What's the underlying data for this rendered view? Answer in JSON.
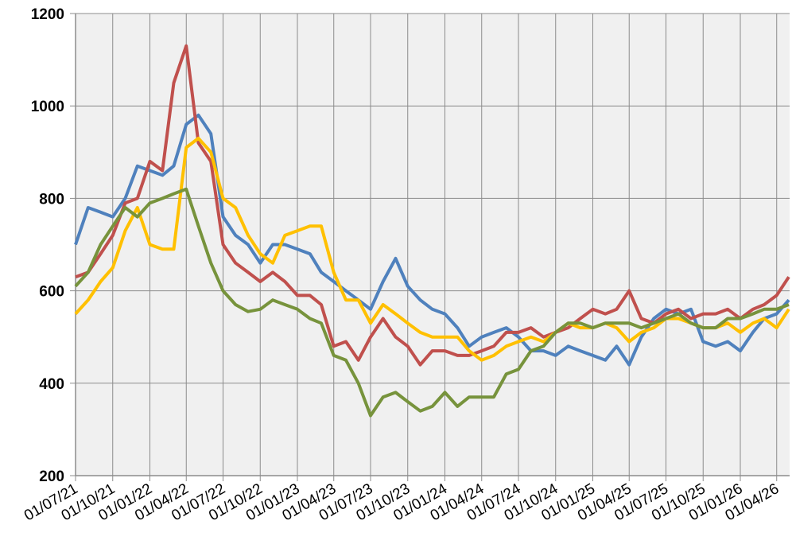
{
  "chart_data": {
    "type": "line",
    "x": [
      "01/07/21",
      "01/08/21",
      "01/09/21",
      "01/10/21",
      "01/11/21",
      "01/12/21",
      "01/01/22",
      "01/02/22",
      "01/03/22",
      "01/04/22",
      "01/05/22",
      "01/06/22",
      "01/07/22",
      "01/08/22",
      "01/09/22",
      "01/10/22",
      "01/11/22",
      "01/12/22",
      "01/01/23",
      "01/02/23",
      "01/03/23",
      "01/04/23",
      "01/05/23",
      "01/06/23",
      "01/07/23",
      "01/08/23",
      "01/09/23",
      "01/10/23",
      "01/11/23",
      "01/12/23",
      "01/01/24",
      "01/02/24",
      "01/03/24",
      "01/04/24",
      "01/05/24",
      "01/06/24",
      "01/07/24",
      "01/08/24",
      "01/09/24",
      "01/10/24",
      "01/11/24",
      "01/12/24",
      "01/01/25",
      "01/02/25",
      "01/03/25",
      "01/04/25",
      "01/05/25",
      "01/06/25",
      "01/07/25",
      "01/08/25",
      "01/09/25",
      "01/10/25",
      "01/11/25",
      "01/12/25",
      "01/01/26",
      "01/02/26",
      "01/03/26",
      "01/04/26",
      "01/05/26"
    ],
    "series": [
      {
        "color": "#4f81bd",
        "values": [
          700,
          780,
          770,
          760,
          800,
          870,
          860,
          850,
          870,
          960,
          980,
          940,
          760,
          720,
          700,
          660,
          700,
          700,
          690,
          680,
          640,
          620,
          600,
          580,
          560,
          620,
          670,
          610,
          580,
          560,
          550,
          520,
          480,
          500,
          510,
          520,
          500,
          470,
          470,
          460,
          480,
          470,
          460,
          450,
          480,
          440,
          500,
          540,
          560,
          550,
          560,
          490,
          480,
          490,
          470,
          510,
          540,
          550,
          580
        ]
      },
      {
        "color": "#c0504d",
        "values": [
          630,
          640,
          680,
          720,
          790,
          800,
          880,
          860,
          1050,
          1130,
          920,
          880,
          700,
          660,
          640,
          620,
          640,
          620,
          590,
          590,
          570,
          480,
          490,
          450,
          500,
          540,
          500,
          480,
          440,
          470,
          470,
          460,
          460,
          470,
          480,
          510,
          510,
          520,
          500,
          510,
          520,
          540,
          560,
          550,
          560,
          600,
          540,
          530,
          550,
          560,
          540,
          550,
          550,
          560,
          540,
          560,
          570,
          590,
          630
        ]
      },
      {
        "color": "#ffc000",
        "values": [
          550,
          580,
          620,
          650,
          730,
          780,
          700,
          690,
          690,
          910,
          930,
          900,
          800,
          780,
          720,
          680,
          660,
          720,
          730,
          740,
          740,
          640,
          580,
          580,
          530,
          570,
          550,
          530,
          510,
          500,
          500,
          500,
          470,
          450,
          460,
          480,
          490,
          500,
          490,
          510,
          530,
          520,
          520,
          530,
          520,
          490,
          510,
          520,
          540,
          540,
          530,
          520,
          520,
          530,
          510,
          530,
          540,
          520,
          560
        ]
      },
      {
        "color": "#77933c",
        "values": [
          610,
          640,
          700,
          740,
          780,
          760,
          790,
          800,
          810,
          820,
          740,
          660,
          600,
          570,
          555,
          560,
          580,
          570,
          560,
          540,
          530,
          460,
          450,
          400,
          330,
          370,
          380,
          360,
          340,
          350,
          380,
          350,
          370,
          370,
          370,
          420,
          430,
          470,
          480,
          510,
          530,
          530,
          520,
          530,
          530,
          530,
          520,
          530,
          540,
          550,
          530,
          520,
          520,
          540,
          540,
          550,
          560,
          560,
          570
        ]
      }
    ],
    "xlim": [
      "01/07/21",
      "03/05/26"
    ],
    "xticks": [
      "01/07/21",
      "01/10/21",
      "01/01/22",
      "01/04/22",
      "01/07/22",
      "01/10/22",
      "01/01/23",
      "01/04/23",
      "01/07/23",
      "01/10/23",
      "01/01/24",
      "01/04/24",
      "01/07/24",
      "01/10/24",
      "01/01/25",
      "01/04/25",
      "01/07/25",
      "01/10/25",
      "01/01/26",
      "01/04/26"
    ],
    "ylim": [
      200,
      1200
    ],
    "yticks": [
      200,
      400,
      600,
      800,
      1000,
      1200
    ],
    "grid": true
  }
}
